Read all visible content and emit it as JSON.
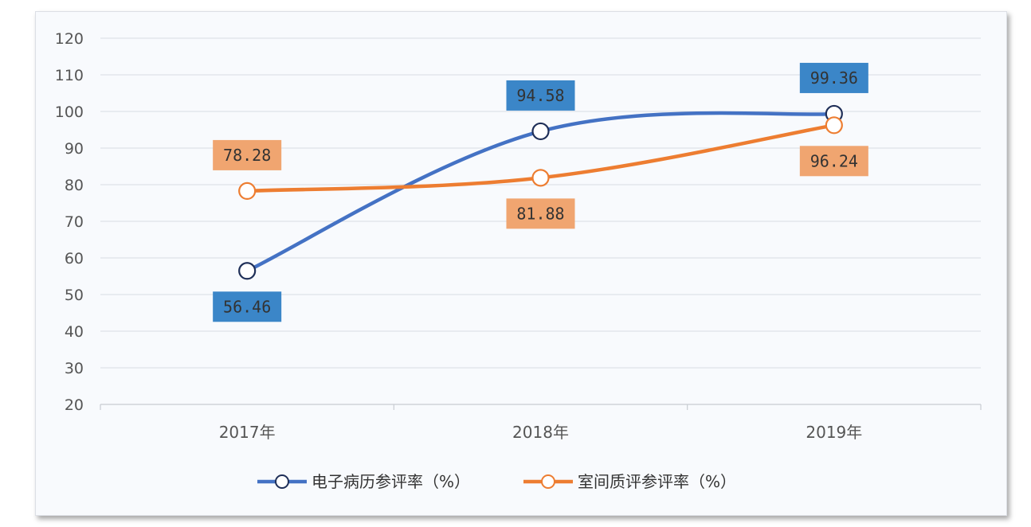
{
  "chart_data": {
    "type": "line",
    "categories": [
      "2017年",
      "2018年",
      "2019年"
    ],
    "yticks": [
      "120",
      "110",
      "100",
      "90",
      "80",
      "70",
      "60",
      "50",
      "40",
      "30",
      "20"
    ],
    "ylim": [
      20,
      120
    ],
    "grid": true,
    "legend_position": "bottom",
    "series": [
      {
        "name": "电子病历参评率（%）",
        "values": [
          56.46,
          94.58,
          99.36
        ],
        "labels": [
          "56.46",
          "94.58",
          "99.36"
        ],
        "label_positions": [
          "below",
          "above",
          "above"
        ],
        "color": "#4472c4",
        "label_bg": "#3b86c8"
      },
      {
        "name": "室间质评参评率（%）",
        "values": [
          78.28,
          81.88,
          96.24
        ],
        "labels": [
          "78.28",
          "81.88",
          "96.24"
        ],
        "label_positions": [
          "above",
          "below",
          "below"
        ],
        "color": "#ed7d31",
        "label_bg": "#f0a570"
      }
    ]
  }
}
